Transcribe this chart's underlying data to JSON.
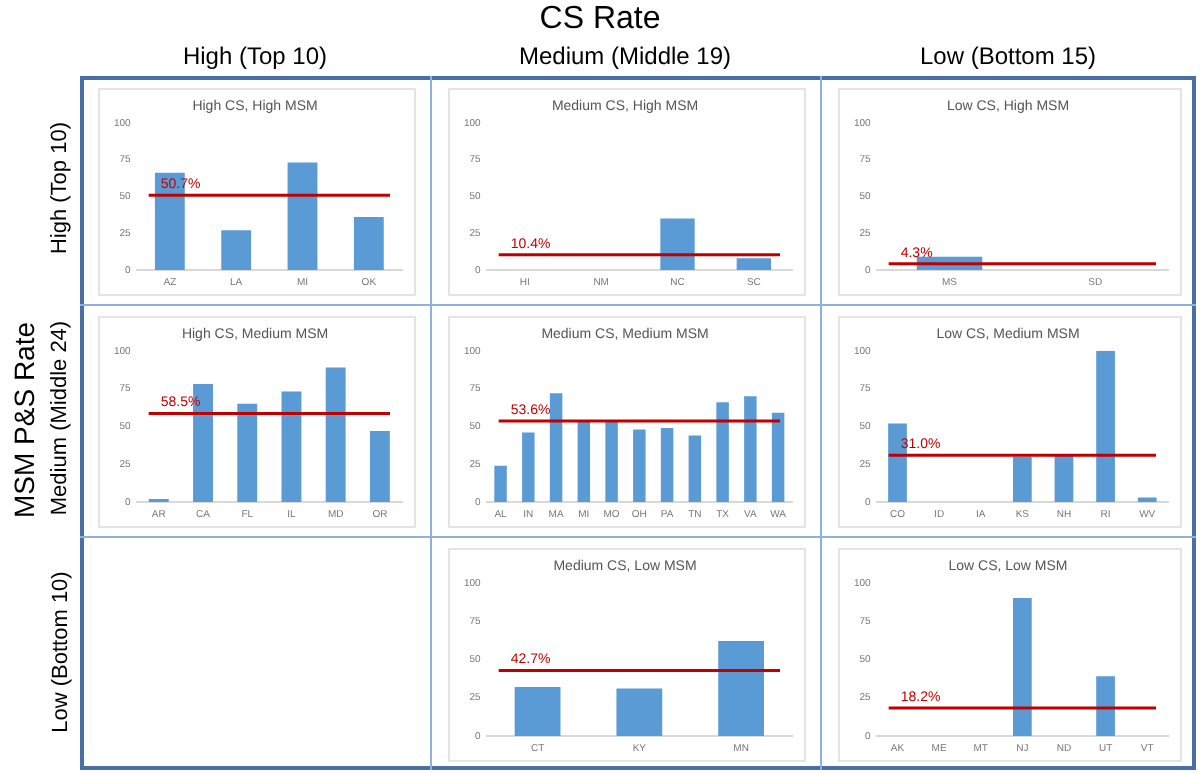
{
  "chart_data": [
    {
      "type": "other",
      "title": "CS Rate",
      "ylabel": "MSM P&S Rate",
      "annotations": [
        "High (Top 10)",
        "Medium (Middle 19)",
        "Low  (Bottom 15)",
        "High (Top 10)",
        "Medium (Middle 24)",
        "Low  (Bottom 10)"
      ]
    },
    {
      "type": "bar",
      "title": "High CS, High MSM",
      "categories": [
        "AZ",
        "LA",
        "MI",
        "OK"
      ],
      "values": [
        66,
        27,
        73,
        36
      ],
      "color": "#5b9bd5",
      "ylim": [
        0,
        100
      ],
      "yticks": [
        0,
        25,
        50,
        75,
        100
      ],
      "ref_lines": [
        {
          "axis": "y",
          "value": 50.7,
          "label": "50.7%",
          "color": "#c00000"
        }
      ],
      "legend": false,
      "grid": false
    },
    {
      "type": "bar",
      "title": "Medium CS, High MSM",
      "categories": [
        "HI",
        "NM",
        "NC",
        "SC"
      ],
      "values": [
        0,
        0,
        35,
        8
      ],
      "color": "#5b9bd5",
      "ylim": [
        0,
        100
      ],
      "yticks": [
        0,
        25,
        50,
        75,
        100
      ],
      "ref_lines": [
        {
          "axis": "y",
          "value": 10.4,
          "label": "10.4%",
          "color": "#c00000"
        }
      ],
      "legend": false,
      "grid": false
    },
    {
      "type": "bar",
      "title": "Low CS, High MSM",
      "categories": [
        "MS",
        "SD"
      ],
      "values": [
        9,
        0
      ],
      "color": "#5b9bd5",
      "ylim": [
        0,
        100
      ],
      "yticks": [
        0,
        25,
        50,
        75,
        100
      ],
      "ref_lines": [
        {
          "axis": "y",
          "value": 4.3,
          "label": "4.3%",
          "color": "#c00000"
        }
      ],
      "legend": false,
      "grid": false
    },
    {
      "type": "bar",
      "title": "High CS, Medium MSM",
      "categories": [
        "AR",
        "CA",
        "FL",
        "IL",
        "MD",
        "OR"
      ],
      "values": [
        2,
        78,
        65,
        73,
        89,
        47
      ],
      "color": "#5b9bd5",
      "ylim": [
        0,
        100
      ],
      "yticks": [
        0,
        25,
        50,
        75,
        100
      ],
      "ref_lines": [
        {
          "axis": "y",
          "value": 58.5,
          "label": "58.5%",
          "color": "#c00000"
        }
      ],
      "legend": false,
      "grid": false
    },
    {
      "type": "bar",
      "title": "Medium CS, Medium MSM",
      "categories": [
        "AL",
        "IN",
        "MA",
        "MI",
        "MO",
        "OH",
        "PA",
        "TN",
        "TX",
        "VA",
        "WA"
      ],
      "values": [
        24,
        46,
        72,
        53,
        54,
        48,
        49,
        44,
        66,
        70,
        59
      ],
      "color": "#5b9bd5",
      "ylim": [
        0,
        100
      ],
      "yticks": [
        0,
        25,
        50,
        75,
        100
      ],
      "ref_lines": [
        {
          "axis": "y",
          "value": 53.6,
          "label": "53.6%",
          "color": "#c00000"
        }
      ],
      "legend": false,
      "grid": false
    },
    {
      "type": "bar",
      "title": "Low CS, Medium MSM",
      "categories": [
        "CO",
        "ID",
        "IA",
        "KS",
        "NH",
        "RI",
        "WV"
      ],
      "values": [
        52,
        0,
        0,
        30,
        31,
        100,
        3
      ],
      "color": "#5b9bd5",
      "ylim": [
        0,
        100
      ],
      "yticks": [
        0,
        25,
        50,
        75,
        100
      ],
      "ref_lines": [
        {
          "axis": "y",
          "value": 31.0,
          "label": "31.0%",
          "color": "#c00000"
        }
      ],
      "legend": false,
      "grid": false
    },
    {
      "type": "bar",
      "title": "Medium CS, Low MSM",
      "categories": [
        "CT",
        "KY",
        "MN"
      ],
      "values": [
        32,
        31,
        62
      ],
      "color": "#5b9bd5",
      "ylim": [
        0,
        100
      ],
      "yticks": [
        0,
        25,
        50,
        75,
        100
      ],
      "ref_lines": [
        {
          "axis": "y",
          "value": 42.7,
          "label": "42.7%",
          "color": "#c00000"
        }
      ],
      "legend": false,
      "grid": false
    },
    {
      "type": "bar",
      "title": "Low CS, Low MSM",
      "categories": [
        "AK",
        "ME",
        "MT",
        "NJ",
        "ND",
        "UT",
        "VT"
      ],
      "values": [
        0,
        0,
        0,
        90,
        0,
        39,
        0
      ],
      "color": "#5b9bd5",
      "ylim": [
        0,
        100
      ],
      "yticks": [
        0,
        25,
        50,
        75,
        100
      ],
      "ref_lines": [
        {
          "axis": "y",
          "value": 18.2,
          "label": "18.2%",
          "color": "#c00000"
        }
      ],
      "legend": false,
      "grid": false
    }
  ]
}
